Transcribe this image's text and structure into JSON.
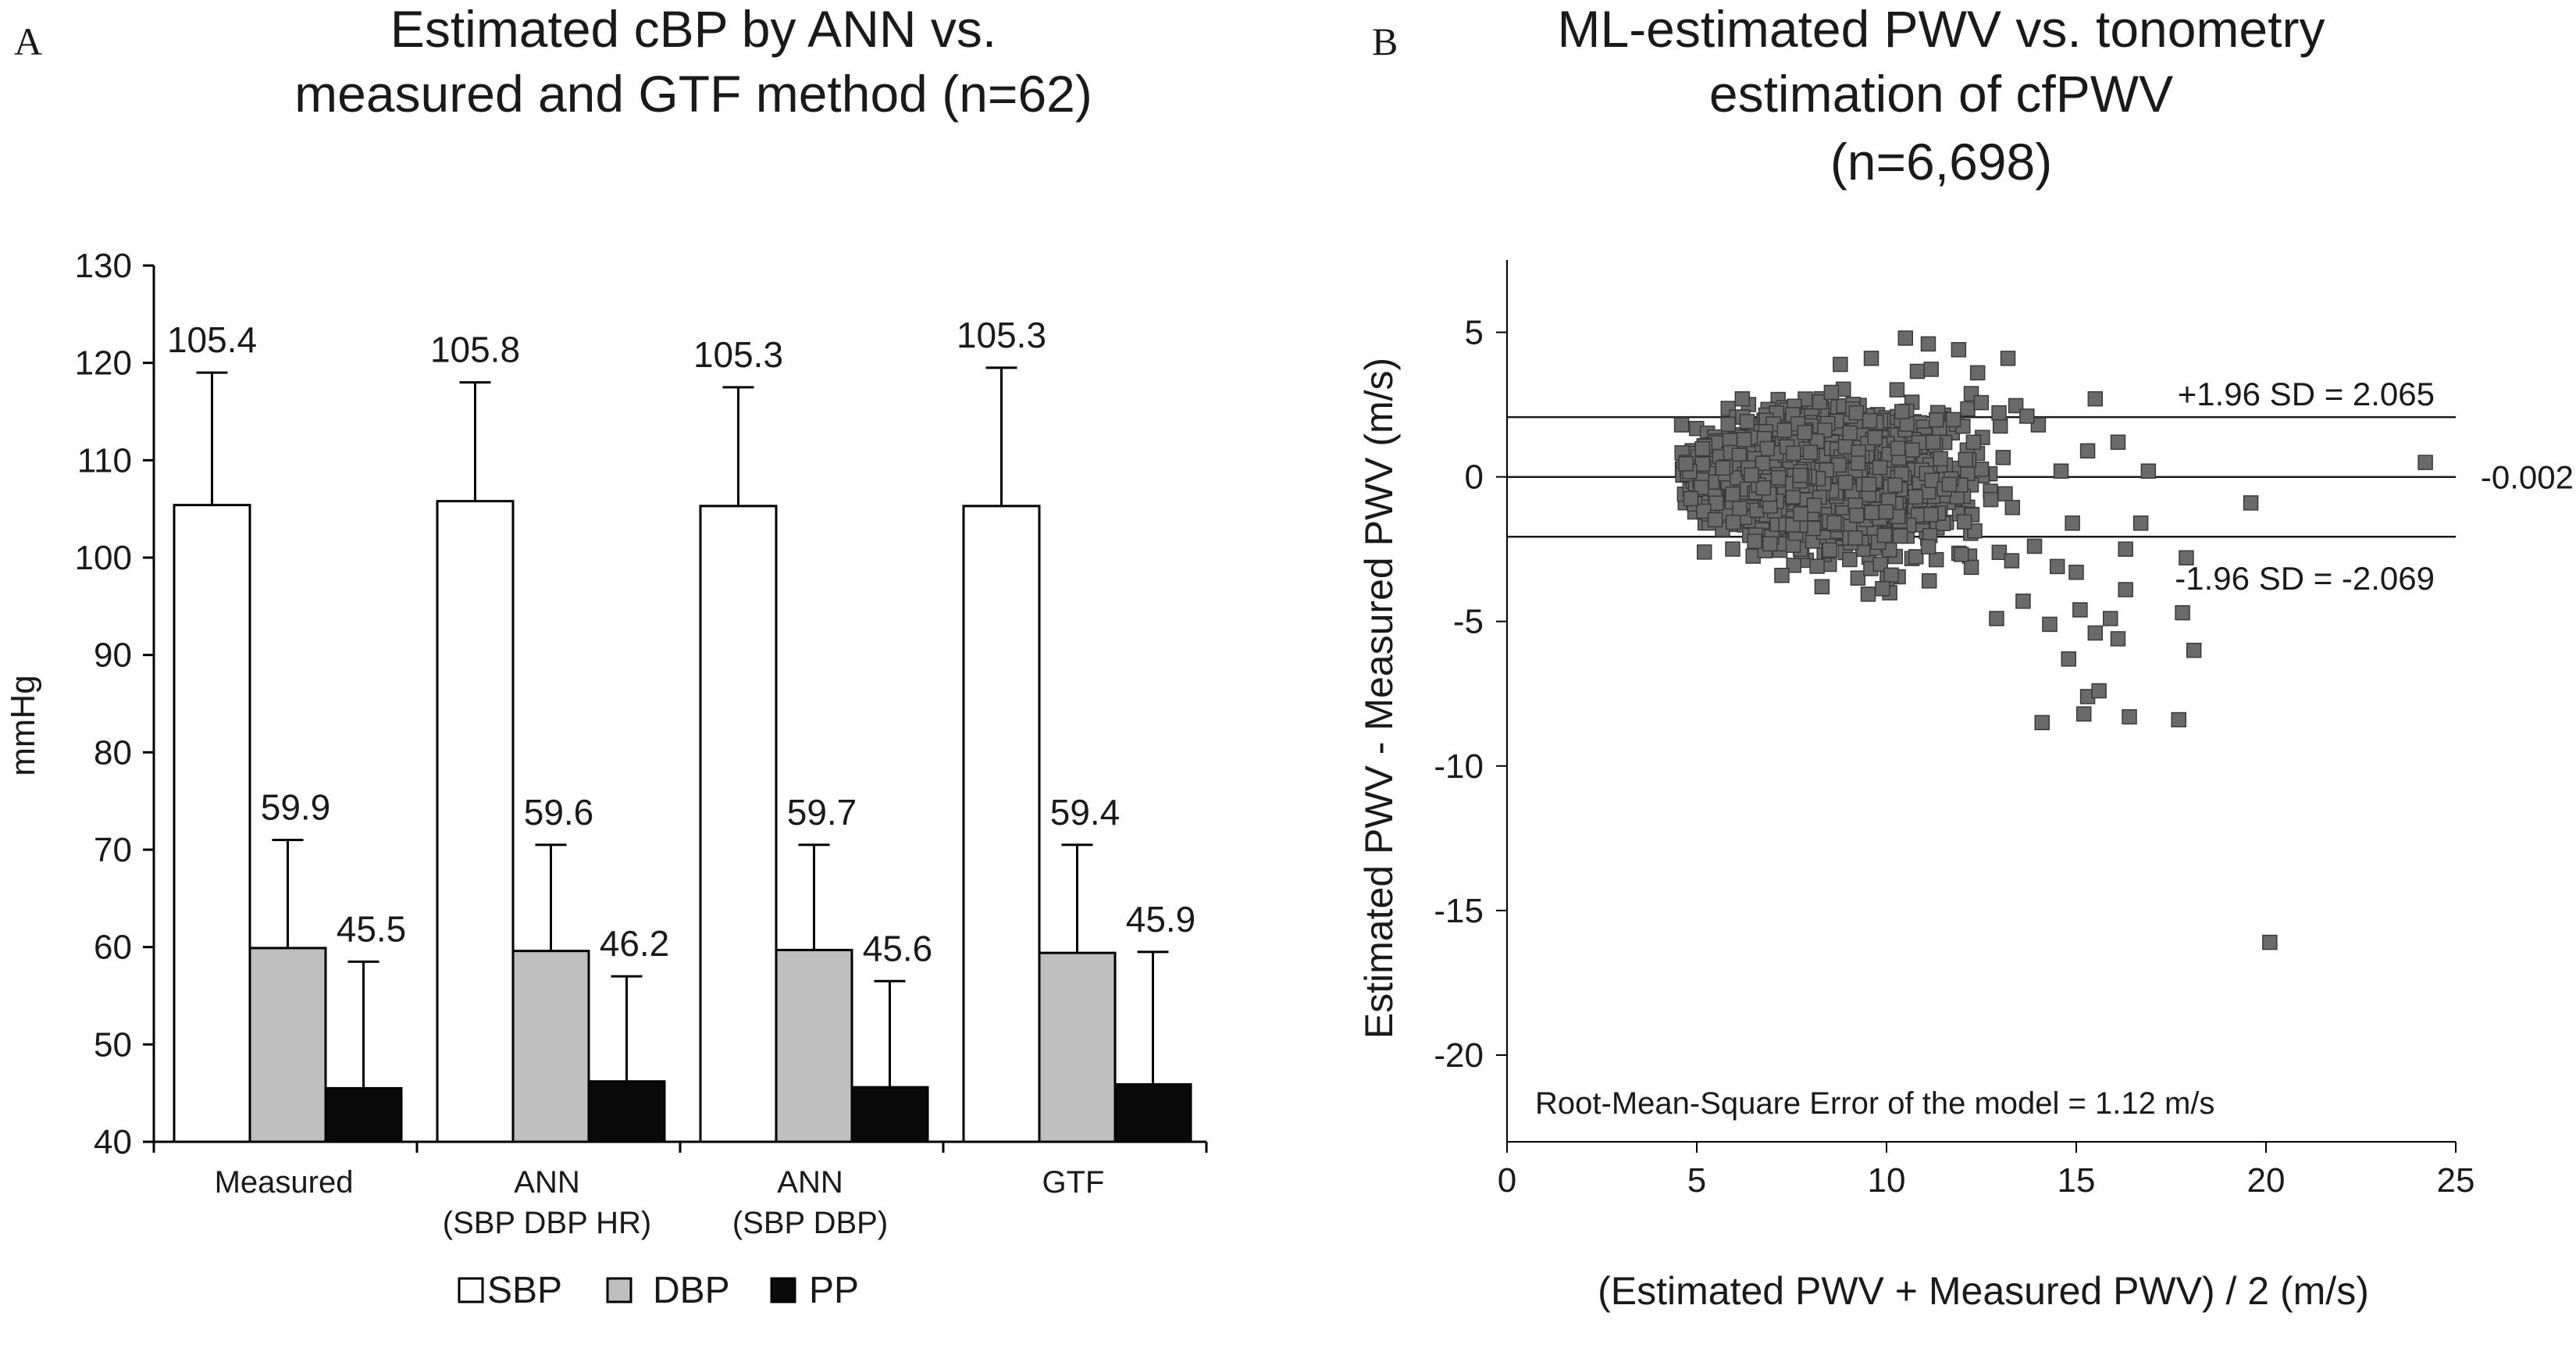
{
  "panelA": {
    "letter": "A",
    "title_lines": [
      "Estimated cBP by ANN vs.",
      "measured and GTF method (n=62)"
    ],
    "ylabel": "mmHg",
    "legend": [
      {
        "label": "SBP",
        "color": "#ffffff"
      },
      {
        "label": "DBP",
        "color": "#bfbfbf"
      },
      {
        "label": "PP",
        "color": "#0a0a0a"
      }
    ]
  },
  "panelB": {
    "letter": "B",
    "title_lines": [
      "ML-estimated PWV vs. tonometry",
      "estimation of cfPWV",
      "(n=6,698)"
    ],
    "xlabel": "(Estimated PWV + Measured PWV) / 2 (m/s)",
    "ylabel": "Estimated PWV - Measured PWV (m/s)",
    "lines": [
      {
        "label": "+1.96 SD = 2.065",
        "y": 2.065
      },
      {
        "label": "-0.002",
        "y": -0.002
      },
      {
        "label": "-1.96 SD = -2.069",
        "y": -2.069
      }
    ],
    "annotation": "Root-Mean-Square Error of the model = 1.12 m/s"
  },
  "chart_data": [
    {
      "type": "bar",
      "title": "Estimated cBP by ANN vs. measured and GTF method (n=62)",
      "xlabel": "",
      "ylabel": "mmHg",
      "ylim": [
        40,
        130
      ],
      "yticks": [
        40,
        50,
        60,
        70,
        80,
        90,
        100,
        110,
        120,
        130
      ],
      "grid": false,
      "legend_position": "bottom",
      "categories": [
        [
          "Measured"
        ],
        [
          "ANN",
          "(SBP DBP HR)"
        ],
        [
          "ANN",
          "(SBP DBP)"
        ],
        [
          "GTF"
        ]
      ],
      "series": [
        {
          "name": "SBP",
          "color": "#ffffff",
          "values": [
            105.4,
            105.8,
            105.3,
            105.3
          ],
          "labels": [
            "105.4",
            "105.8",
            "105.3",
            "105.3"
          ],
          "error_top": [
            119,
            118,
            117.5,
            119.5
          ]
        },
        {
          "name": "DBP",
          "color": "#bfbfbf",
          "values": [
            59.9,
            59.6,
            59.7,
            59.4
          ],
          "labels": [
            "59.9",
            "59.6",
            "59.7",
            "59.4"
          ],
          "error_top": [
            71,
            70.5,
            70.5,
            70.5
          ]
        },
        {
          "name": "PP",
          "color": "#0a0a0a",
          "values": [
            45.5,
            46.2,
            45.6,
            45.9
          ],
          "labels": [
            "45.5",
            "46.2",
            "45.6",
            "45.9"
          ],
          "error_top": [
            58.5,
            57,
            56.5,
            59.5
          ]
        }
      ]
    },
    {
      "type": "scatter",
      "title": "ML-estimated PWV vs. tonometry estimation of cfPWV (n=6,698)",
      "xlabel": "(Estimated PWV + Measured PWV) / 2 (m/s)",
      "ylabel": "Estimated PWV - Measured PWV (m/s)",
      "xlim": [
        0,
        25
      ],
      "ylim": [
        -23,
        7.5
      ],
      "xticks": [
        0,
        5,
        10,
        15,
        20,
        25
      ],
      "yticks": [
        5,
        0,
        -5,
        -10,
        -15,
        -20
      ],
      "grid": false,
      "n": 6698,
      "marker_color": "#6a6a6a",
      "reference_lines": [
        2.065,
        -0.002,
        -2.069
      ],
      "outliers": [
        {
          "x": 24.2,
          "y": 0.5
        },
        {
          "x": 19.6,
          "y": -0.9
        },
        {
          "x": 20.1,
          "y": -16.1
        },
        {
          "x": 15.5,
          "y": 2.7
        },
        {
          "x": 16.1,
          "y": 1.2
        },
        {
          "x": 16.9,
          "y": 0.2
        },
        {
          "x": 15.3,
          "y": 0.9
        },
        {
          "x": 14.9,
          "y": -1.6
        },
        {
          "x": 14.5,
          "y": -3.1
        },
        {
          "x": 15.5,
          "y": -5.4
        },
        {
          "x": 16.1,
          "y": -5.6
        },
        {
          "x": 16.3,
          "y": -3.9
        },
        {
          "x": 15.9,
          "y": -4.9
        },
        {
          "x": 15.1,
          "y": -4.6
        },
        {
          "x": 14.8,
          "y": -6.3
        },
        {
          "x": 15.3,
          "y": -7.6
        },
        {
          "x": 15.6,
          "y": -7.4
        },
        {
          "x": 15.2,
          "y": -8.2
        },
        {
          "x": 14.1,
          "y": -8.5
        },
        {
          "x": 16.4,
          "y": -8.3
        },
        {
          "x": 17.7,
          "y": -8.4
        },
        {
          "x": 17.8,
          "y": -4.7
        },
        {
          "x": 18.1,
          "y": -6.0
        },
        {
          "x": 17.9,
          "y": -2.8
        },
        {
          "x": 16.7,
          "y": -1.6
        },
        {
          "x": 14.3,
          "y": -5.1
        },
        {
          "x": 13.6,
          "y": -4.3
        },
        {
          "x": 13.9,
          "y": -2.4
        },
        {
          "x": 13.2,
          "y": 4.1
        },
        {
          "x": 11.9,
          "y": 4.4
        },
        {
          "x": 10.5,
          "y": 4.8
        },
        {
          "x": 11.1,
          "y": 4.6
        },
        {
          "x": 14.0,
          "y": 1.8
        },
        {
          "x": 13.7,
          "y": 2.1
        },
        {
          "x": 16.3,
          "y": -2.5
        },
        {
          "x": 12.9,
          "y": -4.9
        },
        {
          "x": 14.6,
          "y": 0.2
        },
        {
          "x": 13.3,
          "y": -2.9
        },
        {
          "x": 15.0,
          "y": -3.3
        },
        {
          "x": 12.4,
          "y": 3.6
        },
        {
          "x": 6.2,
          "y": 2.7
        },
        {
          "x": 5.2,
          "y": -2.6
        },
        {
          "x": 4.6,
          "y": 1.8
        },
        {
          "x": 9.6,
          "y": 4.1
        },
        {
          "x": 8.3,
          "y": -3.8
        }
      ]
    }
  ]
}
